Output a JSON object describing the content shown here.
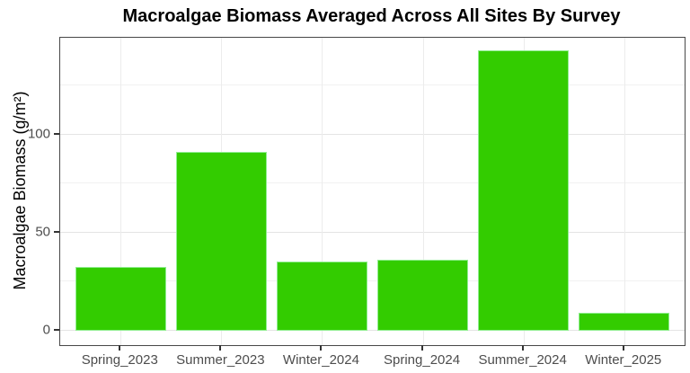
{
  "title": "Macroalgae Biomass Averaged Across All Sites By Survey",
  "chart_data": {
    "type": "bar",
    "title": "Macroalgae Biomass Averaged Across All Sites By Survey",
    "xlabel": "",
    "ylabel": "Macroalgae Biomass (g/m²)",
    "categories": [
      "Spring_2023",
      "Summer_2023",
      "Winter_2024",
      "Spring_2024",
      "Summer_2024",
      "Winter_2025"
    ],
    "values": [
      32.5,
      91,
      35,
      36,
      143,
      9
    ],
    "ylim": [
      0,
      150
    ],
    "axis_range": [
      -7.5,
      149.5
    ],
    "yticks_major": [
      0,
      50,
      100
    ],
    "yticks_minor": [
      25,
      75,
      125
    ],
    "grid": "on",
    "legend": "none",
    "bar_width_ratio": 0.9,
    "discrete_expand": 0.6
  },
  "colors": {
    "bar_fill": "#33cc00",
    "bar_stroke": "#90ee90",
    "panel_border": "#484848",
    "grid_major": "#e4e4e4",
    "grid_minor": "#f1f1f1",
    "tick_mark": "#333333",
    "axis_text": "#4d4d4d",
    "title_text": "#000000"
  }
}
